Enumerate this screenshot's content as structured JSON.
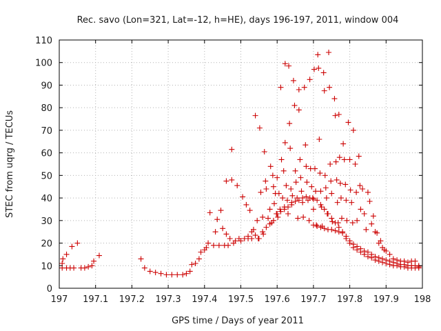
{
  "chart_data": {
    "type": "scatter",
    "title": "Rec. savo (Lon=321, Lat=-12, h=HE), days 196-197, 2011, window 004",
    "xlabel": "GPS time / Days of year 2011",
    "ylabel": "STEC from uqrg / TECUs",
    "xlim": [
      197,
      198
    ],
    "ylim": [
      0,
      110
    ],
    "x_ticks": [
      197,
      197.1,
      197.2,
      197.3,
      197.4,
      197.5,
      197.6,
      197.7,
      197.8,
      197.9,
      198
    ],
    "x_tick_labels": [
      "197",
      "197.1",
      "197.2",
      "197.3",
      "197.4",
      "197.5",
      "197.6",
      "197.7",
      "197.8",
      "197.9",
      "198"
    ],
    "y_ticks": [
      0,
      10,
      20,
      30,
      40,
      50,
      60,
      70,
      80,
      90,
      100,
      110
    ],
    "y_tick_labels": [
      "0",
      "10",
      "20",
      "30",
      "40",
      "50",
      "60",
      "70",
      "80",
      "90",
      "100",
      "110"
    ],
    "grid": true,
    "marker": "plus",
    "marker_color": "#cc0000",
    "series": [
      {
        "points": [
          [
            197.008,
            9
          ],
          [
            197.008,
            11
          ],
          [
            197.01,
            13
          ],
          [
            197.02,
            9
          ],
          [
            197.02,
            15
          ],
          [
            197.03,
            9
          ],
          [
            197.035,
            18.5
          ],
          [
            197.04,
            9
          ],
          [
            197.05,
            20
          ],
          [
            197.06,
            9
          ],
          [
            197.07,
            9
          ],
          [
            197.08,
            9.5
          ],
          [
            197.09,
            10
          ],
          [
            197.095,
            12
          ],
          [
            197.11,
            14.5
          ],
          [
            197.225,
            13
          ],
          [
            197.235,
            9
          ],
          [
            197.25,
            7.5
          ],
          [
            197.265,
            7
          ],
          [
            197.28,
            6.5
          ],
          [
            197.295,
            6
          ],
          [
            197.31,
            6
          ],
          [
            197.325,
            6
          ],
          [
            197.34,
            6
          ],
          [
            197.35,
            6.5
          ],
          [
            197.36,
            7.5
          ],
          [
            197.365,
            10.5
          ],
          [
            197.375,
            11
          ],
          [
            197.385,
            13
          ],
          [
            197.39,
            16
          ],
          [
            197.4,
            17
          ],
          [
            197.405,
            18
          ],
          [
            197.41,
            20
          ],
          [
            197.415,
            33.5
          ],
          [
            197.425,
            19
          ],
          [
            197.43,
            25
          ],
          [
            197.435,
            30.5
          ],
          [
            197.44,
            19
          ],
          [
            197.445,
            34.5
          ],
          [
            197.45,
            26.5
          ],
          [
            197.455,
            19
          ],
          [
            197.46,
            47.5
          ],
          [
            197.46,
            24
          ],
          [
            197.465,
            19
          ],
          [
            197.47,
            22
          ],
          [
            197.475,
            61.5
          ],
          [
            197.475,
            48
          ],
          [
            197.48,
            20
          ],
          [
            197.485,
            21
          ],
          [
            197.49,
            45.5
          ],
          [
            197.495,
            22
          ],
          [
            197.5,
            21
          ],
          [
            197.505,
            40.5
          ],
          [
            197.51,
            22
          ],
          [
            197.515,
            37
          ],
          [
            197.52,
            23
          ],
          [
            197.525,
            34.5
          ],
          [
            197.53,
            22
          ],
          [
            197.535,
            26
          ],
          [
            197.54,
            76.5
          ],
          [
            197.545,
            30
          ],
          [
            197.548,
            22
          ],
          [
            197.552,
            71
          ],
          [
            197.555,
            42.5
          ],
          [
            197.56,
            31.5
          ],
          [
            197.562,
            24
          ],
          [
            197.565,
            60.5
          ],
          [
            197.568,
            47.5
          ],
          [
            197.57,
            44
          ],
          [
            197.575,
            31
          ],
          [
            197.58,
            35
          ],
          [
            197.582,
            54
          ],
          [
            197.585,
            29
          ],
          [
            197.588,
            50
          ],
          [
            197.59,
            45
          ],
          [
            197.592,
            37.5
          ],
          [
            197.595,
            42
          ],
          [
            197.598,
            33
          ],
          [
            197.6,
            49
          ],
          [
            197.602,
            31.5
          ],
          [
            197.605,
            42
          ],
          [
            197.608,
            35
          ],
          [
            197.61,
            89
          ],
          [
            197.612,
            57
          ],
          [
            197.615,
            40
          ],
          [
            197.618,
            52
          ],
          [
            197.62,
            36
          ],
          [
            197.622,
            99.5
          ],
          [
            197.622,
            64.5
          ],
          [
            197.625,
            45.5
          ],
          [
            197.628,
            39
          ],
          [
            197.63,
            33
          ],
          [
            197.632,
            98.5
          ],
          [
            197.634,
            73
          ],
          [
            197.636,
            62
          ],
          [
            197.638,
            44
          ],
          [
            197.64,
            37
          ],
          [
            197.642,
            41
          ],
          [
            197.645,
            92
          ],
          [
            197.648,
            81
          ],
          [
            197.65,
            52
          ],
          [
            197.652,
            47
          ],
          [
            197.655,
            40
          ],
          [
            197.657,
            31
          ],
          [
            197.66,
            88
          ],
          [
            197.66,
            79
          ],
          [
            197.663,
            57
          ],
          [
            197.665,
            49
          ],
          [
            197.667,
            43
          ],
          [
            197.67,
            38
          ],
          [
            197.672,
            31.5
          ],
          [
            197.675,
            89
          ],
          [
            197.678,
            63.5
          ],
          [
            197.68,
            54
          ],
          [
            197.682,
            47
          ],
          [
            197.685,
            39
          ],
          [
            197.688,
            30
          ],
          [
            197.69,
            92.5
          ],
          [
            197.692,
            53
          ],
          [
            197.695,
            45
          ],
          [
            197.698,
            40
          ],
          [
            197.7,
            35
          ],
          [
            197.702,
            97
          ],
          [
            197.704,
            53
          ],
          [
            197.706,
            43
          ],
          [
            197.708,
            28
          ],
          [
            197.712,
            103.5
          ],
          [
            197.714,
            97.5
          ],
          [
            197.716,
            66
          ],
          [
            197.718,
            51
          ],
          [
            197.72,
            43
          ],
          [
            197.722,
            36
          ],
          [
            197.724,
            27.5
          ],
          [
            197.728,
            95.5
          ],
          [
            197.73,
            87.5
          ],
          [
            197.732,
            50
          ],
          [
            197.734,
            44.5
          ],
          [
            197.736,
            40
          ],
          [
            197.738,
            33
          ],
          [
            197.742,
            104.5
          ],
          [
            197.744,
            89
          ],
          [
            197.746,
            55
          ],
          [
            197.748,
            47.5
          ],
          [
            197.75,
            42
          ],
          [
            197.752,
            29.5
          ],
          [
            197.758,
            84
          ],
          [
            197.76,
            76.5
          ],
          [
            197.762,
            56
          ],
          [
            197.764,
            48
          ],
          [
            197.766,
            38
          ],
          [
            197.768,
            29
          ],
          [
            197.77,
            77
          ],
          [
            197.772,
            58
          ],
          [
            197.774,
            46.5
          ],
          [
            197.776,
            40
          ],
          [
            197.778,
            31
          ],
          [
            197.782,
            64
          ],
          [
            197.785,
            57
          ],
          [
            197.788,
            46
          ],
          [
            197.79,
            39
          ],
          [
            197.792,
            30
          ],
          [
            197.796,
            73.5
          ],
          [
            197.8,
            57
          ],
          [
            197.802,
            43.5
          ],
          [
            197.805,
            38
          ],
          [
            197.808,
            29
          ],
          [
            197.81,
            70
          ],
          [
            197.815,
            55
          ],
          [
            197.818,
            42.5
          ],
          [
            197.82,
            30
          ],
          [
            197.825,
            58.5
          ],
          [
            197.828,
            45.5
          ],
          [
            197.83,
            35
          ],
          [
            197.835,
            44
          ],
          [
            197.84,
            33
          ],
          [
            197.845,
            26
          ],
          [
            197.85,
            42.5
          ],
          [
            197.855,
            38.5
          ],
          [
            197.86,
            28.5
          ],
          [
            197.865,
            32
          ],
          [
            197.87,
            25
          ],
          [
            197.875,
            24.5
          ],
          [
            197.88,
            20
          ],
          [
            197.885,
            21
          ],
          [
            197.89,
            18
          ],
          [
            197.895,
            17
          ],
          [
            197.9,
            16.5
          ],
          [
            197.91,
            15
          ],
          [
            197.92,
            13
          ],
          [
            197.93,
            12.5
          ],
          [
            197.94,
            12
          ],
          [
            197.95,
            12
          ],
          [
            197.96,
            11.5
          ],
          [
            197.97,
            12
          ],
          [
            197.98,
            12
          ],
          [
            197.99,
            10
          ],
          [
            197.52,
            22
          ],
          [
            197.53,
            25
          ],
          [
            197.54,
            23.5
          ],
          [
            197.55,
            22
          ],
          [
            197.56,
            25
          ],
          [
            197.57,
            27
          ],
          [
            197.58,
            28.5
          ],
          [
            197.59,
            30
          ],
          [
            197.6,
            33
          ],
          [
            197.61,
            34
          ],
          [
            197.62,
            35
          ],
          [
            197.63,
            36
          ],
          [
            197.64,
            38
          ],
          [
            197.65,
            38.5
          ],
          [
            197.66,
            39
          ],
          [
            197.67,
            40
          ],
          [
            197.68,
            40.5
          ],
          [
            197.69,
            40
          ],
          [
            197.7,
            39.5
          ],
          [
            197.71,
            39
          ],
          [
            197.72,
            37
          ],
          [
            197.73,
            35
          ],
          [
            197.74,
            33
          ],
          [
            197.75,
            31
          ],
          [
            197.76,
            29
          ],
          [
            197.77,
            27
          ],
          [
            197.78,
            25
          ],
          [
            197.79,
            23
          ],
          [
            197.8,
            21
          ],
          [
            197.81,
            19.5
          ],
          [
            197.82,
            18.5
          ],
          [
            197.83,
            17.5
          ],
          [
            197.84,
            16.5
          ],
          [
            197.85,
            16
          ],
          [
            197.86,
            15
          ],
          [
            197.87,
            14
          ],
          [
            197.88,
            13.5
          ],
          [
            197.89,
            13
          ],
          [
            197.9,
            12.5
          ],
          [
            197.91,
            12
          ],
          [
            197.92,
            11.5
          ],
          [
            197.93,
            11
          ],
          [
            197.94,
            10.5
          ],
          [
            197.95,
            10.5
          ],
          [
            197.96,
            10
          ],
          [
            197.97,
            10
          ],
          [
            197.98,
            10
          ],
          [
            197.99,
            9.5
          ],
          [
            197.7,
            28
          ],
          [
            197.71,
            27.5
          ],
          [
            197.72,
            27
          ],
          [
            197.73,
            26.5
          ],
          [
            197.74,
            26
          ],
          [
            197.75,
            26
          ],
          [
            197.76,
            25.5
          ],
          [
            197.77,
            25
          ],
          [
            197.78,
            24.5
          ],
          [
            197.79,
            22
          ],
          [
            197.8,
            20
          ],
          [
            197.81,
            18
          ],
          [
            197.82,
            17
          ],
          [
            197.83,
            16
          ],
          [
            197.84,
            15
          ],
          [
            197.85,
            14
          ],
          [
            197.86,
            13.5
          ],
          [
            197.87,
            12.5
          ],
          [
            197.88,
            12
          ],
          [
            197.89,
            11.5
          ],
          [
            197.9,
            11
          ],
          [
            197.91,
            10.5
          ],
          [
            197.92,
            10
          ],
          [
            197.93,
            10
          ],
          [
            197.94,
            9.5
          ],
          [
            197.95,
            9.5
          ],
          [
            197.96,
            9
          ],
          [
            197.97,
            9
          ],
          [
            197.98,
            9
          ],
          [
            197.99,
            9
          ]
        ]
      }
    ]
  }
}
